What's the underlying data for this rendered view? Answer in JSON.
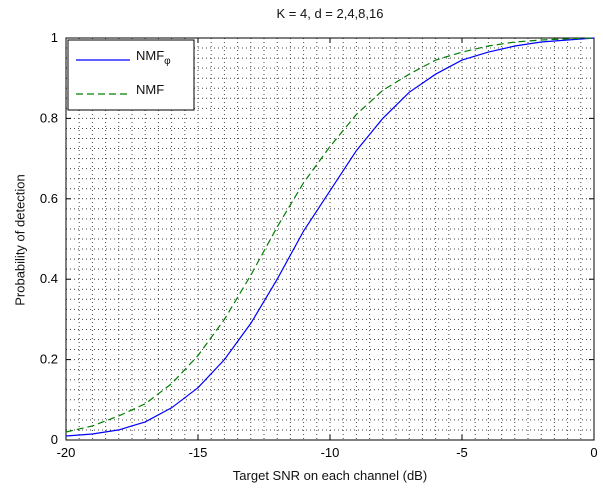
{
  "chart_data": {
    "type": "line",
    "title": "K = 4, d = 2,4,8,16",
    "xlabel": "Target SNR on each channel (dB)",
    "ylabel": "Probability of detection",
    "xlim": [
      -20,
      0
    ],
    "ylim": [
      0,
      1
    ],
    "xticks": [
      "-20",
      "-15",
      "-10",
      "-5",
      "0"
    ],
    "yticks": [
      "0",
      "0.2",
      "0.4",
      "0.6",
      "0.8",
      "1"
    ],
    "grid": true,
    "legend_position": "top-left",
    "series": [
      {
        "name": "NMF",
        "name_sub": "φ",
        "color": "#0000ff",
        "dash": "solid",
        "x": [
          -20,
          -19,
          -18,
          -17,
          -16,
          -15,
          -14,
          -13,
          -12,
          -11,
          -10,
          -9,
          -8,
          -7,
          -6,
          -5,
          -4,
          -3,
          -2,
          -1,
          0
        ],
        "y": [
          0.01,
          0.015,
          0.025,
          0.045,
          0.08,
          0.13,
          0.2,
          0.29,
          0.4,
          0.52,
          0.62,
          0.72,
          0.8,
          0.865,
          0.91,
          0.945,
          0.965,
          0.98,
          0.99,
          0.995,
          1.0
        ]
      },
      {
        "name": "NMF",
        "name_sub": "",
        "color": "#008000",
        "dash": "dashed",
        "x": [
          -20,
          -19,
          -18,
          -17,
          -16,
          -15,
          -14,
          -13,
          -12,
          -11,
          -10,
          -9,
          -8,
          -7,
          -6,
          -5,
          -4,
          -3,
          -2,
          -1,
          0
        ],
        "y": [
          0.02,
          0.035,
          0.06,
          0.09,
          0.14,
          0.21,
          0.3,
          0.41,
          0.53,
          0.64,
          0.73,
          0.81,
          0.87,
          0.91,
          0.945,
          0.965,
          0.98,
          0.99,
          0.995,
          0.998,
          1.0
        ]
      }
    ]
  }
}
